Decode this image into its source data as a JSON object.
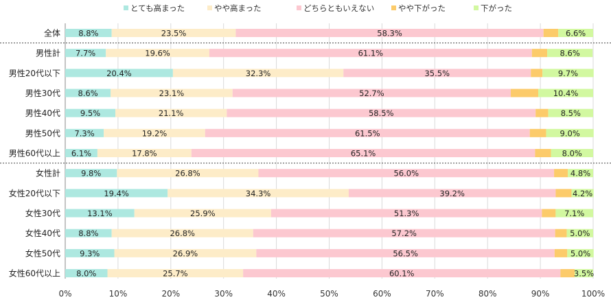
{
  "chart_data": {
    "type": "bar",
    "orientation": "horizontal",
    "stacked": true,
    "title": "",
    "xlabel": "",
    "ylabel": "",
    "xlim": [
      0,
      100
    ],
    "x_tick_labels": [
      "0%",
      "10%",
      "20%",
      "30%",
      "40%",
      "50%",
      "60%",
      "70%",
      "80%",
      "90%",
      "100%"
    ],
    "legend_position": "top",
    "categories": [
      "全体",
      "男性計",
      "男性20代以下",
      "男性30代",
      "男性40代",
      "男性50代",
      "男性60代以上",
      "女性計",
      "女性20代以下",
      "女性30代",
      "女性40代",
      "女性50代",
      "女性60代以上"
    ],
    "group_separators_after": [
      "全体",
      "男性60代以上"
    ],
    "series": [
      {
        "name": "とても高まった",
        "color": "#ade8e0",
        "values": [
          8.8,
          7.7,
          20.4,
          8.6,
          9.5,
          7.3,
          6.1,
          9.8,
          19.4,
          13.1,
          8.8,
          9.3,
          8.0
        ],
        "labels": [
          "8.8%",
          "7.7%",
          "20.4%",
          "8.6%",
          "9.5%",
          "7.3%",
          "6.1%",
          "9.8%",
          "19.4%",
          "13.1%",
          "8.8%",
          "9.3%",
          "8.0%"
        ]
      },
      {
        "name": "やや高まった",
        "color": "#fdecc8",
        "values": [
          23.5,
          19.6,
          32.3,
          23.1,
          21.1,
          19.2,
          17.8,
          26.8,
          34.3,
          25.9,
          26.8,
          26.9,
          25.7
        ],
        "labels": [
          "23.5%",
          "19.6%",
          "32.3%",
          "23.1%",
          "21.1%",
          "19.2%",
          "17.8%",
          "26.8%",
          "34.3%",
          "25.9%",
          "26.8%",
          "26.9%",
          "25.7%"
        ]
      },
      {
        "name": "どちらともいえない",
        "color": "#fcc8d0",
        "values": [
          58.3,
          61.1,
          35.5,
          52.7,
          58.5,
          61.5,
          65.1,
          56.0,
          39.2,
          51.3,
          57.2,
          56.5,
          60.1
        ],
        "labels": [
          "58.3%",
          "61.1%",
          "35.5%",
          "52.7%",
          "58.5%",
          "61.5%",
          "65.1%",
          "56.0%",
          "39.2%",
          "51.3%",
          "57.2%",
          "56.5%",
          "60.1%"
        ]
      },
      {
        "name": "やや下がった",
        "color": "#fccb6a",
        "values": [
          2.8,
          2.9,
          2.2,
          5.2,
          2.4,
          3.1,
          3.0,
          2.6,
          3.0,
          2.6,
          2.2,
          2.4,
          2.7
        ],
        "labels": [
          "",
          "",
          "",
          "",
          "",
          "",
          "",
          "",
          "",
          "",
          "",
          "",
          ""
        ]
      },
      {
        "name": "下がった",
        "color": "#d2f8a0",
        "values": [
          6.6,
          8.6,
          9.7,
          10.4,
          8.5,
          9.0,
          8.0,
          4.8,
          4.2,
          7.1,
          5.0,
          5.0,
          3.5
        ],
        "labels": [
          "6.6%",
          "8.6%",
          "9.7%",
          "10.4%",
          "8.5%",
          "9.0%",
          "8.0%",
          "4.8%",
          "4.2%",
          "7.1%",
          "5.0%",
          "5.0%",
          "3.5%"
        ]
      }
    ]
  }
}
